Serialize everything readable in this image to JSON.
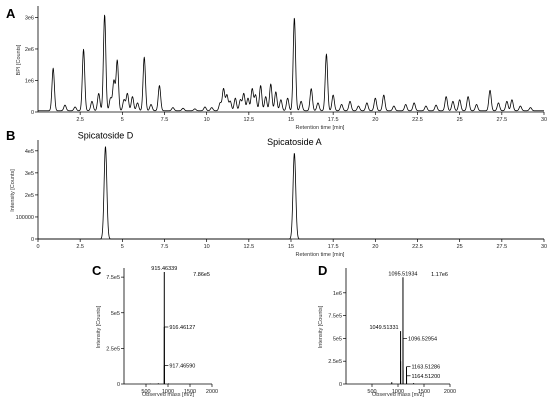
{
  "chart_data": [
    {
      "panel": "A",
      "type": "line",
      "xlabel": "Retention time [min]",
      "ylabel": "BPI [Counts]",
      "xlim": [
        0,
        30
      ],
      "ylim": [
        0,
        3300000.0
      ],
      "xticks": [
        "2.5",
        "5",
        "7.5",
        "10",
        "12.5",
        "15",
        "17.5",
        "20",
        "22.5",
        "25",
        "27.5",
        "30"
      ],
      "yticks": [
        "0",
        "1e6",
        "2e6",
        "3e6"
      ],
      "baseline": 40000,
      "peaks": [
        [
          0.9,
          1350000.0
        ],
        [
          1.6,
          180000.0
        ],
        [
          2.2,
          120000.0
        ],
        [
          2.7,
          1950000.0
        ],
        [
          3.2,
          300000.0
        ],
        [
          3.6,
          550000.0
        ],
        [
          3.95,
          3050000.0
        ],
        [
          4.3,
          400000.0
        ],
        [
          4.5,
          950000.0
        ],
        [
          4.7,
          1600000.0
        ],
        [
          5.1,
          350000.0
        ],
        [
          5.3,
          550000.0
        ],
        [
          5.6,
          450000.0
        ],
        [
          5.9,
          250000.0
        ],
        [
          6.3,
          1700000.0
        ],
        [
          6.7,
          200000.0
        ],
        [
          7.2,
          800000.0
        ],
        [
          8.0,
          100000.0
        ],
        [
          8.6,
          80000.0
        ],
        [
          9.3,
          60000.0
        ],
        [
          9.9,
          120000.0
        ],
        [
          10.3,
          100000.0
        ],
        [
          10.8,
          250000.0
        ],
        [
          11.0,
          700000.0
        ],
        [
          11.2,
          500000.0
        ],
        [
          11.4,
          300000.0
        ],
        [
          11.7,
          400000.0
        ],
        [
          12.0,
          350000.0
        ],
        [
          12.2,
          550000.0
        ],
        [
          12.45,
          400000.0
        ],
        [
          12.7,
          700000.0
        ],
        [
          12.9,
          500000.0
        ],
        [
          13.2,
          800000.0
        ],
        [
          13.5,
          450000.0
        ],
        [
          13.8,
          850000.0
        ],
        [
          14.1,
          600000.0
        ],
        [
          14.4,
          350000.0
        ],
        [
          14.8,
          400000.0
        ],
        [
          15.2,
          2950000.0
        ],
        [
          15.6,
          300000.0
        ],
        [
          16.2,
          700000.0
        ],
        [
          16.6,
          250000.0
        ],
        [
          17.1,
          1800000.0
        ],
        [
          17.5,
          500000.0
        ],
        [
          18.0,
          200000.0
        ],
        [
          18.5,
          300000.0
        ],
        [
          19.0,
          150000.0
        ],
        [
          19.5,
          250000.0
        ],
        [
          20.0,
          400000.0
        ],
        [
          20.5,
          500000.0
        ],
        [
          21.1,
          150000.0
        ],
        [
          21.8,
          200000.0
        ],
        [
          22.3,
          250000.0
        ],
        [
          23.0,
          150000.0
        ],
        [
          23.6,
          180000.0
        ],
        [
          24.2,
          450000.0
        ],
        [
          24.6,
          300000.0
        ],
        [
          25.0,
          350000.0
        ],
        [
          25.5,
          450000.0
        ],
        [
          26.0,
          200000.0
        ],
        [
          26.8,
          650000.0
        ],
        [
          27.3,
          250000.0
        ],
        [
          27.8,
          300000.0
        ],
        [
          28.1,
          350000.0
        ],
        [
          28.6,
          150000.0
        ],
        [
          29.2,
          100000.0
        ]
      ]
    },
    {
      "panel": "B",
      "type": "line",
      "xlabel": "Retention time [min]",
      "ylabel": "Intensity [Counts]",
      "xlim": [
        0,
        30
      ],
      "ylim": [
        0,
        440000.0
      ],
      "xticks": [
        "0",
        "2.5",
        "5",
        "7.5",
        "10",
        "12.5",
        "15",
        "17.5",
        "20",
        "22.5",
        "25",
        "27.5",
        "30"
      ],
      "yticks": [
        "0",
        "100000",
        "2e5",
        "3e5",
        "4e5"
      ],
      "baseline": 0,
      "peaks": [
        [
          4.0,
          420000.0
        ],
        [
          15.2,
          390000.0
        ]
      ],
      "annotations": [
        {
          "label": "Spicatoside D",
          "x": 4.0
        },
        {
          "label": "Spicatoside A",
          "x": 15.2
        }
      ]
    },
    {
      "panel": "C",
      "type": "bar",
      "xlabel": "Observed mass [m/z]",
      "ylabel": "Intensity [Counts]",
      "xlim": [
        0,
        2000
      ],
      "ylim": [
        0,
        800000.0
      ],
      "xticks": [
        "500",
        "1000",
        "1500",
        "2000"
      ],
      "yticks": [
        "0",
        "2.5e5",
        "5e5",
        "7.5e5"
      ],
      "max_intensity_label": "7.86e5",
      "sticks": [
        [
          915.46339,
          786000.0
        ],
        [
          916.46127,
          400000.0
        ],
        [
          917.4659,
          130000.0
        ],
        [
          600,
          3000.0
        ],
        [
          780,
          5000.0
        ],
        [
          1010,
          4000.0
        ]
      ],
      "peak_labels": [
        {
          "mz": 915.46339,
          "label": "915.46339"
        },
        {
          "mz": 916.46127,
          "label": "916.46127"
        },
        {
          "mz": 917.4659,
          "label": "917.46590"
        }
      ]
    },
    {
      "panel": "D",
      "type": "bar",
      "xlabel": "Observed mass [m/z]",
      "ylabel": "Intensity [Counts]",
      "xlim": [
        0,
        2000
      ],
      "ylim": [
        0,
        1250000.0
      ],
      "xticks": [
        "500",
        "1000",
        "1500",
        "2000"
      ],
      "yticks": [
        "0",
        "2.5e5",
        "5e5",
        "7.5e5",
        "1e6"
      ],
      "max_intensity_label": "1.17e6",
      "sticks": [
        [
          1095.51934,
          1170000.0
        ],
        [
          1049.51331,
          580000.0
        ],
        [
          1096.52954,
          500000.0
        ],
        [
          1163.51286,
          190000.0
        ],
        [
          1164.512,
          90000.0
        ],
        [
          1097.5,
          150000.0
        ],
        [
          1050.5,
          250000.0
        ],
        [
          880,
          20000.0
        ],
        [
          1300,
          10000.0
        ]
      ],
      "peak_labels": [
        {
          "mz": 1095.51934,
          "label": "1095.51934"
        },
        {
          "mz": 1049.51331,
          "label": "1049.51331"
        },
        {
          "mz": 1096.52954,
          "label": "1096.52954"
        },
        {
          "mz": 1163.51286,
          "label": "1163.51286"
        },
        {
          "mz": 1164.512,
          "label": "1164.51200"
        }
      ]
    }
  ]
}
